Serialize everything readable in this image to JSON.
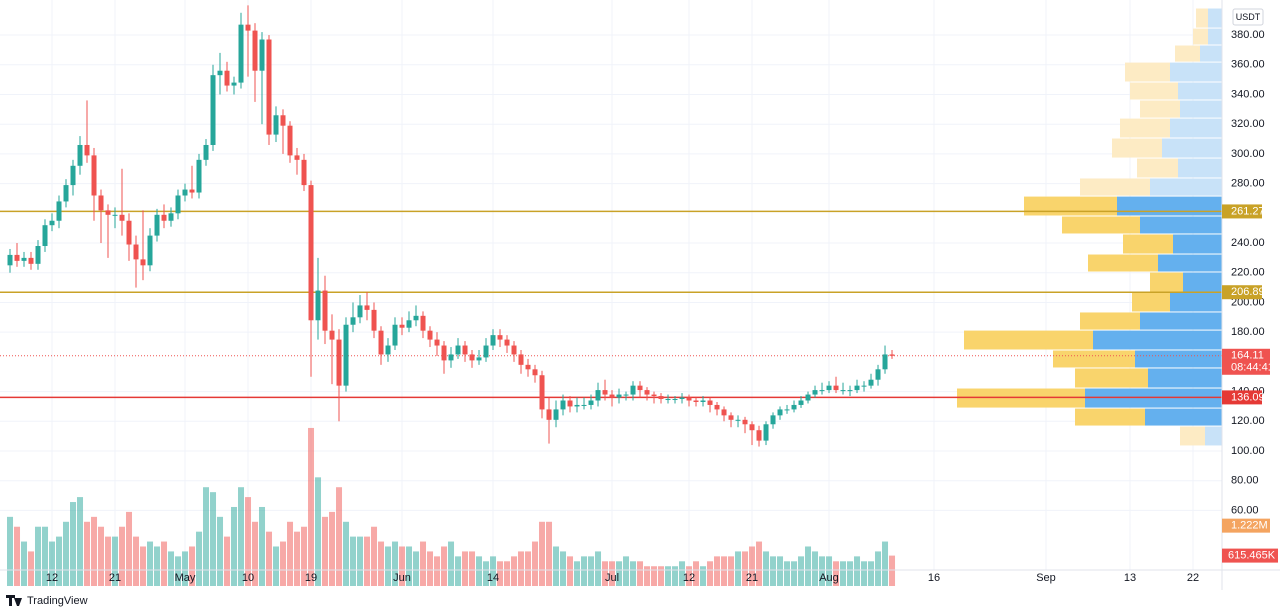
{
  "chart_data": {
    "type": "candlestick",
    "unit_label": "USDT",
    "brand": "TradingView",
    "xlim": [
      -1.43,
      173.14
    ],
    "ylim": [
      19.9,
      403.6
    ],
    "vlim": [
      0,
      3300000
    ],
    "xticks": [
      {
        "value": 6,
        "label": "12"
      },
      {
        "value": 15,
        "label": "21"
      },
      {
        "value": 25,
        "label": "May"
      },
      {
        "value": 34,
        "label": "10"
      },
      {
        "value": 43,
        "label": "19"
      },
      {
        "value": 56,
        "label": "Jun"
      },
      {
        "value": 69,
        "label": "14"
      },
      {
        "value": 86,
        "label": "Jul"
      },
      {
        "value": 97,
        "label": "12"
      },
      {
        "value": 106,
        "label": "21"
      },
      {
        "value": 117,
        "label": "Aug"
      },
      {
        "value": 132,
        "label": "16"
      },
      {
        "value": 148,
        "label": "Sep"
      },
      {
        "value": 160,
        "label": "13"
      },
      {
        "value": 169,
        "label": "22"
      }
    ],
    "yticks": [
      {
        "value": 60,
        "label": "60.00"
      },
      {
        "value": 80,
        "label": "80.00"
      },
      {
        "value": 100,
        "label": "100.00"
      },
      {
        "value": 120,
        "label": "120.00"
      },
      {
        "value": 140,
        "label": "140.00"
      },
      {
        "value": 180,
        "label": "180.00"
      },
      {
        "value": 200,
        "label": "200.00"
      },
      {
        "value": 220,
        "label": "220.00"
      },
      {
        "value": 240,
        "label": "240.00"
      },
      {
        "value": 280,
        "label": "280.00"
      },
      {
        "value": 300,
        "label": "300.00"
      },
      {
        "value": 320,
        "label": "320.00"
      },
      {
        "value": 340,
        "label": "340.00"
      },
      {
        "value": 360,
        "label": "360.00"
      },
      {
        "value": 380,
        "label": "380.00"
      }
    ],
    "grid": true,
    "up_color": "#26a69a",
    "down_color": "#ef5350",
    "x": [
      0,
      1,
      2,
      3,
      4,
      5,
      6,
      7,
      8,
      9,
      10,
      11,
      12,
      13,
      14,
      15,
      16,
      17,
      18,
      19,
      20,
      21,
      22,
      23,
      24,
      25,
      26,
      27,
      28,
      29,
      30,
      31,
      32,
      33,
      34,
      35,
      36,
      37,
      38,
      39,
      40,
      41,
      42,
      43,
      44,
      45,
      46,
      47,
      48,
      49,
      50,
      51,
      52,
      53,
      54,
      55,
      56,
      57,
      58,
      59,
      60,
      61,
      62,
      63,
      64,
      65,
      66,
      67,
      68,
      69,
      70,
      71,
      72,
      73,
      74,
      75,
      76,
      77,
      78,
      79,
      80,
      81,
      82,
      83,
      84,
      85,
      86,
      87,
      88,
      89,
      90,
      91,
      92,
      93,
      94,
      95,
      96,
      97,
      98,
      99,
      100,
      101,
      102,
      103,
      104,
      105,
      106,
      107,
      108,
      109,
      110,
      111,
      112,
      113,
      114,
      115,
      116,
      117,
      118,
      119,
      120,
      121,
      122,
      123,
      124,
      125,
      126
    ],
    "ohlc": [
      [
        225,
        236,
        220,
        232
      ],
      [
        232,
        240,
        224,
        228
      ],
      [
        228,
        234,
        224,
        230
      ],
      [
        230,
        234,
        222,
        226
      ],
      [
        226,
        242,
        222,
        238
      ],
      [
        238,
        256,
        234,
        252
      ],
      [
        252,
        260,
        248,
        255
      ],
      [
        255,
        272,
        250,
        268
      ],
      [
        268,
        283,
        264,
        279
      ],
      [
        279,
        296,
        272,
        292
      ],
      [
        292,
        312,
        286,
        306
      ],
      [
        306,
        336,
        294,
        299
      ],
      [
        299,
        304,
        255,
        272
      ],
      [
        272,
        276,
        240,
        262
      ],
      [
        262,
        266,
        230,
        259
      ],
      [
        259,
        264,
        250,
        259
      ],
      [
        259,
        290,
        245,
        255
      ],
      [
        255,
        260,
        228,
        239
      ],
      [
        239,
        245,
        210,
        229
      ],
      [
        229,
        262,
        215,
        225
      ],
      [
        225,
        250,
        221,
        245
      ],
      [
        245,
        263,
        241,
        259
      ],
      [
        259,
        266,
        250,
        255
      ],
      [
        255,
        264,
        251,
        260
      ],
      [
        260,
        276,
        256,
        272
      ],
      [
        272,
        280,
        268,
        276
      ],
      [
        276,
        292,
        270,
        274
      ],
      [
        274,
        300,
        270,
        296
      ],
      [
        296,
        310,
        292,
        306
      ],
      [
        306,
        360,
        302,
        353
      ],
      [
        353,
        368,
        340,
        356
      ],
      [
        356,
        362,
        342,
        346
      ],
      [
        346,
        352,
        340,
        348
      ],
      [
        348,
        395,
        344,
        387
      ],
      [
        387,
        400,
        352,
        383
      ],
      [
        383,
        388,
        335,
        356
      ],
      [
        356,
        382,
        320,
        377
      ],
      [
        377,
        380,
        306,
        313
      ],
      [
        313,
        332,
        308,
        326
      ],
      [
        326,
        330,
        300,
        319
      ],
      [
        319,
        322,
        294,
        299
      ],
      [
        299,
        304,
        286,
        296
      ],
      [
        296,
        300,
        275,
        279
      ],
      [
        279,
        282,
        150,
        188
      ],
      [
        188,
        230,
        175,
        208
      ],
      [
        208,
        218,
        172,
        181
      ],
      [
        181,
        192,
        145,
        175
      ],
      [
        175,
        182,
        120,
        144
      ],
      [
        144,
        190,
        140,
        185
      ],
      [
        185,
        200,
        180,
        190
      ],
      [
        190,
        205,
        186,
        198
      ],
      [
        198,
        207,
        188,
        195
      ],
      [
        195,
        200,
        176,
        181
      ],
      [
        181,
        184,
        158,
        165
      ],
      [
        165,
        176,
        160,
        171
      ],
      [
        171,
        190,
        168,
        185
      ],
      [
        185,
        190,
        178,
        183
      ],
      [
        183,
        194,
        180,
        188
      ],
      [
        188,
        198,
        184,
        191
      ],
      [
        191,
        194,
        176,
        181
      ],
      [
        181,
        184,
        170,
        175
      ],
      [
        175,
        180,
        164,
        171
      ],
      [
        171,
        174,
        152,
        161
      ],
      [
        161,
        170,
        156,
        165
      ],
      [
        165,
        176,
        162,
        171
      ],
      [
        171,
        174,
        160,
        165
      ],
      [
        165,
        168,
        156,
        161
      ],
      [
        161,
        168,
        158,
        163
      ],
      [
        163,
        176,
        160,
        171
      ],
      [
        171,
        182,
        168,
        178
      ],
      [
        178,
        182,
        170,
        175
      ],
      [
        175,
        178,
        166,
        171
      ],
      [
        171,
        174,
        160,
        165
      ],
      [
        165,
        168,
        152,
        158
      ],
      [
        158,
        162,
        150,
        155
      ],
      [
        155,
        158,
        146,
        151
      ],
      [
        151,
        154,
        122,
        128
      ],
      [
        128,
        136,
        105,
        121
      ],
      [
        121,
        134,
        116,
        128
      ],
      [
        128,
        138,
        124,
        134
      ],
      [
        134,
        137,
        126,
        130
      ],
      [
        130,
        136,
        126,
        131
      ],
      [
        131,
        136,
        128,
        131
      ],
      [
        131,
        138,
        128,
        134
      ],
      [
        134,
        146,
        130,
        141
      ],
      [
        141,
        148,
        134,
        138
      ],
      [
        138,
        141,
        130,
        136
      ],
      [
        136,
        142,
        132,
        138
      ],
      [
        138,
        140,
        134,
        138
      ],
      [
        138,
        147,
        134,
        144
      ],
      [
        144,
        147,
        136,
        141
      ],
      [
        141,
        143,
        134,
        138
      ],
      [
        138,
        140,
        132,
        137
      ],
      [
        137,
        139,
        132,
        135
      ],
      [
        135,
        138,
        132,
        135
      ],
      [
        135,
        137,
        132,
        135
      ],
      [
        135,
        139,
        132,
        136
      ],
      [
        136,
        138,
        130,
        134
      ],
      [
        134,
        136,
        130,
        133
      ],
      [
        133,
        137,
        130,
        134
      ],
      [
        134,
        136,
        126,
        131
      ],
      [
        131,
        133,
        124,
        128
      ],
      [
        128,
        130,
        120,
        124
      ],
      [
        124,
        126,
        116,
        121
      ],
      [
        121,
        124,
        116,
        121
      ],
      [
        121,
        123,
        112,
        118
      ],
      [
        118,
        120,
        104,
        114
      ],
      [
        114,
        117,
        103,
        107
      ],
      [
        107,
        120,
        104,
        118
      ],
      [
        118,
        126,
        115,
        124
      ],
      [
        124,
        130,
        121,
        128
      ],
      [
        128,
        131,
        125,
        128
      ],
      [
        128,
        134,
        126,
        131
      ],
      [
        131,
        137,
        129,
        134
      ],
      [
        134,
        140,
        132,
        138
      ],
      [
        138,
        144,
        136,
        141
      ],
      [
        141,
        146,
        138,
        141
      ],
      [
        141,
        147,
        139,
        144
      ],
      [
        144,
        150,
        139,
        141
      ],
      [
        141,
        146,
        138,
        141
      ],
      [
        141,
        144,
        137,
        141
      ],
      [
        141,
        148,
        139,
        144
      ],
      [
        144,
        147,
        140,
        144
      ],
      [
        144,
        152,
        142,
        148
      ],
      [
        148,
        158,
        144,
        155
      ],
      [
        155,
        171,
        152,
        165
      ],
      [
        165,
        168,
        162,
        164.11
      ]
    ],
    "volume": [
      1400000,
      1200000,
      900000,
      700000,
      1200000,
      1200000,
      900000,
      1000000,
      1300000,
      1700000,
      1800000,
      1300000,
      1400000,
      1200000,
      1000000,
      1000000,
      1200000,
      1500000,
      1000000,
      800000,
      900000,
      800000,
      900000,
      700000,
      600000,
      700000,
      800000,
      1100000,
      2000000,
      1900000,
      1400000,
      1000000,
      1600000,
      2000000,
      1800000,
      1300000,
      1600000,
      1100000,
      800000,
      900000,
      1300000,
      1100000,
      1200000,
      3200000,
      2200000,
      1400000,
      1500000,
      2000000,
      1300000,
      1000000,
      1000000,
      1000000,
      1200000,
      900000,
      800000,
      900000,
      800000,
      800000,
      700000,
      900000,
      700000,
      600000,
      800000,
      900000,
      600000,
      700000,
      700000,
      600000,
      500000,
      600000,
      500000,
      500000,
      600000,
      700000,
      700000,
      900000,
      1300000,
      1300000,
      800000,
      700000,
      600000,
      500000,
      600000,
      600000,
      700000,
      500000,
      500000,
      500000,
      600000,
      500000,
      500000,
      400000,
      400000,
      400000,
      400000,
      400000,
      500000,
      400000,
      500000,
      400000,
      500000,
      600000,
      600000,
      600000,
      700000,
      700000,
      800000,
      900000,
      700000,
      600000,
      600000,
      500000,
      500000,
      600000,
      800000,
      700000,
      600000,
      600000,
      500000,
      500000,
      500000,
      600000,
      500000,
      500000,
      700000,
      900000,
      615465
    ],
    "volume_ma": {
      "value": 1222000,
      "label": "1.222M",
      "color": "#f4a460"
    },
    "volume_last": {
      "value": 615465,
      "label": "615.465K"
    },
    "levels": [
      {
        "value": 261.27,
        "color": "#c9a227"
      },
      {
        "value": 206.89,
        "color": "#c9a227"
      },
      {
        "value": 136.09,
        "color": "#e53935"
      }
    ],
    "last": {
      "value": 164.11,
      "countdown": "08:44:41",
      "color": "#ef5350"
    },
    "profile": {
      "bins": [
        103.4,
        116.8,
        128.9,
        142.4,
        155.9,
        168.0,
        181.4,
        193.6,
        207.0,
        220.5,
        232.6,
        246.1,
        258.2,
        271.6,
        283.8,
        297.2,
        310.7,
        324.1,
        336.3,
        348.4,
        361.8,
        373.3,
        384.7,
        398.2
      ],
      "up": [
        17,
        77,
        137,
        74,
        87,
        129,
        82,
        52,
        39,
        64,
        49,
        82,
        105,
        72,
        44,
        60,
        52,
        42,
        44,
        52,
        22,
        14,
        14
      ],
      "down": [
        25,
        70,
        128,
        73,
        82,
        129,
        60,
        38,
        33,
        70,
        50,
        78,
        93,
        70,
        41,
        50,
        50,
        40,
        48,
        45,
        25,
        15,
        12
      ],
      "value_area": [
        116.8,
        271.6
      ],
      "up_color": "#64b0ee",
      "down_color": "#f9d46c",
      "up_color_outside": "#c8e2f8",
      "down_color_outside": "#fdebc4"
    }
  }
}
